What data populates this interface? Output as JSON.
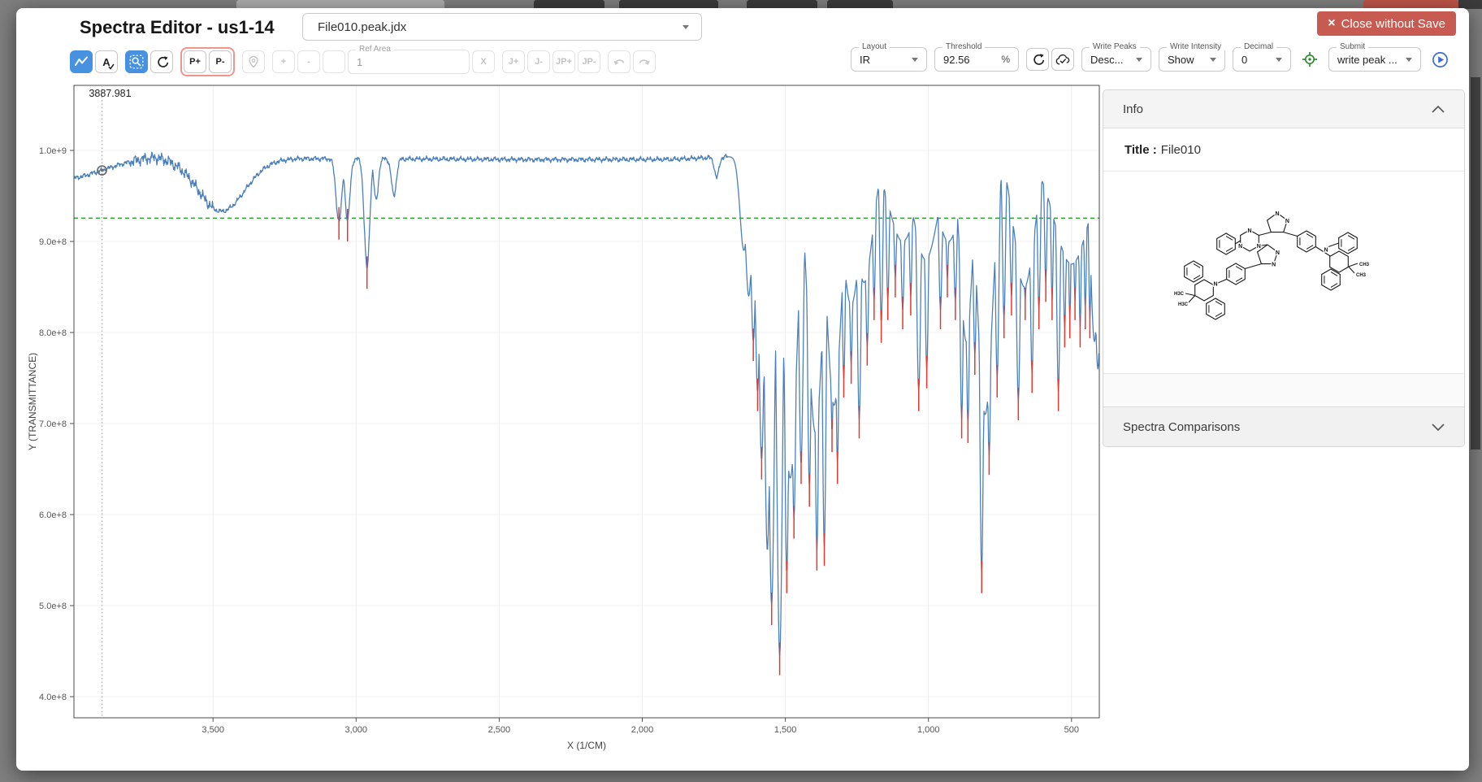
{
  "window": {
    "title": "Spectra Editor - us1-14",
    "file_selector_value": "File010.peak.jdx",
    "close_button_label": "Close without Save",
    "close_icon": "×"
  },
  "toolbar": {
    "buttons": {
      "a": "A",
      "a_check": "✓",
      "p_plus": "P+",
      "p_minus": "P-",
      "plus": "+",
      "minus": "-",
      "x": "X",
      "j_plus": "J+",
      "j_minus": "J-",
      "jp_plus": "JP+",
      "jp_minus": "JP-"
    },
    "ref_area": {
      "label": "Ref Area",
      "value": "1"
    }
  },
  "controls": {
    "layout": {
      "label": "Layout",
      "value": "IR"
    },
    "threshold": {
      "label": "Threshold",
      "value": "92.56",
      "suffix": "%"
    },
    "write_peaks": {
      "label": "Write Peaks",
      "value": "Desc..."
    },
    "write_intensity": {
      "label": "Write Intensity",
      "value": "Show"
    },
    "decimal": {
      "label": "Decimal",
      "value": "0"
    },
    "submit": {
      "label": "Submit",
      "value": "write peak ..."
    }
  },
  "panel": {
    "info_header": "Info",
    "title_label": "Title :",
    "title_value": "File010",
    "comparisons_header": "Spectra Comparisons"
  },
  "molecule": {
    "n": "N",
    "ch3": "CH3",
    "h3c": "H3C"
  },
  "chart_data": {
    "type": "line",
    "xlabel": "X (1/CM)",
    "ylabel": "Y (TRANSMITTANCE)",
    "x_range": [
      3986,
      403
    ],
    "x_ticks": [
      {
        "label": "3,500",
        "value": 3500
      },
      {
        "label": "3,000",
        "value": 3000
      },
      {
        "label": "2,500",
        "value": 2500
      },
      {
        "label": "2,000",
        "value": 2000
      },
      {
        "label": "1,500",
        "value": 1500
      },
      {
        "label": "1,000",
        "value": 1000
      },
      {
        "label": "500",
        "value": 500
      }
    ],
    "y_ticks": [
      {
        "label": "1.0e+9",
        "value": 10
      },
      {
        "label": "9.0e+8",
        "value": 9
      },
      {
        "label": "8.0e+8",
        "value": 8
      },
      {
        "label": "7.0e+8",
        "value": 7
      },
      {
        "label": "6.0e+8",
        "value": 6
      },
      {
        "label": "5.0e+8",
        "value": 5
      },
      {
        "label": "4.0e+8",
        "value": 4
      }
    ],
    "y_unit_scale": "1e8",
    "threshold_value": 9.256,
    "threshold_percent": 92.56,
    "cursor": {
      "x": 3887.981,
      "label": "3887.981",
      "y": 9.78
    },
    "series_color": "#4b80bc",
    "peak_marker_color": "#e03a30",
    "threshold_color": "#2f9e2f",
    "grid": true,
    "baseline_anchors": [
      [
        4020,
        9.67
      ],
      [
        3950,
        9.72
      ],
      [
        3890,
        9.78
      ],
      [
        3820,
        9.85
      ],
      [
        3760,
        9.9
      ],
      [
        3700,
        9.93
      ],
      [
        3620,
        9.91
      ],
      [
        3500,
        9.89
      ],
      [
        3200,
        9.91
      ],
      [
        2400,
        9.9
      ],
      [
        1900,
        9.9
      ],
      [
        1700,
        9.93
      ],
      [
        400,
        9.93
      ]
    ],
    "noise_amp": 0.012,
    "peaks": [
      [
        3470,
        9.33,
        95,
        0
      ],
      [
        3625,
        9.82,
        18,
        0
      ],
      [
        3060,
        9.22,
        12,
        1
      ],
      [
        3030,
        9.23,
        10,
        1
      ],
      [
        2962,
        8.7,
        11,
        1
      ],
      [
        2930,
        9.45,
        9,
        0
      ],
      [
        2868,
        9.5,
        10,
        0
      ],
      [
        1740,
        9.7,
        9,
        0
      ],
      [
        1645,
        8.9,
        16,
        0
      ],
      [
        1628,
        8.4,
        14,
        0
      ],
      [
        1612,
        7.9,
        10,
        1
      ],
      [
        1597,
        7.35,
        10,
        1
      ],
      [
        1583,
        6.6,
        11,
        1
      ],
      [
        1563,
        5.6,
        12,
        0
      ],
      [
        1548,
        5.0,
        12,
        1
      ],
      [
        1520,
        4.45,
        12,
        1
      ],
      [
        1495,
        5.35,
        9,
        1
      ],
      [
        1483,
        6.4,
        28,
        0
      ],
      [
        1470,
        5.95,
        9,
        1
      ],
      [
        1445,
        6.55,
        9,
        1
      ],
      [
        1416,
        6.3,
        8,
        1
      ],
      [
        1395,
        6.9,
        30,
        0
      ],
      [
        1390,
        5.6,
        8,
        1
      ],
      [
        1364,
        5.65,
        8,
        1
      ],
      [
        1337,
        6.9,
        7,
        1
      ],
      [
        1330,
        7.2,
        30,
        0
      ],
      [
        1318,
        6.55,
        7,
        1
      ],
      [
        1296,
        7.5,
        7,
        1
      ],
      [
        1270,
        7.65,
        7,
        1
      ],
      [
        1270,
        8.3,
        35,
        0
      ],
      [
        1242,
        7.05,
        8,
        1
      ],
      [
        1225,
        8.55,
        35,
        0
      ],
      [
        1214,
        7.85,
        7,
        1
      ],
      [
        1190,
        8.35,
        6,
        1
      ],
      [
        1165,
        8.1,
        6,
        1
      ],
      [
        1142,
        8.35,
        6,
        1
      ],
      [
        1116,
        8.6,
        6,
        1
      ],
      [
        1090,
        9.0,
        55,
        0
      ],
      [
        1090,
        8.25,
        7,
        1
      ],
      [
        1062,
        8.4,
        6,
        1
      ],
      [
        1034,
        7.35,
        8,
        1
      ],
      [
        1010,
        8.8,
        48,
        0
      ],
      [
        1006,
        7.6,
        7,
        1
      ],
      [
        958,
        8.25,
        7,
        1
      ],
      [
        934,
        8.6,
        6,
        1
      ],
      [
        930,
        9.0,
        48,
        0
      ],
      [
        906,
        8.35,
        7,
        1
      ],
      [
        884,
        7.05,
        7,
        1
      ],
      [
        868,
        7.9,
        24,
        0
      ],
      [
        862,
        7.0,
        7,
        1
      ],
      [
        838,
        7.75,
        7,
        1
      ],
      [
        814,
        5.35,
        8,
        1
      ],
      [
        802,
        7.1,
        30,
        0
      ],
      [
        788,
        6.65,
        8,
        1
      ],
      [
        760,
        7.5,
        7,
        1
      ],
      [
        736,
        8.15,
        6,
        1
      ],
      [
        710,
        8.4,
        6,
        1
      ],
      [
        686,
        7.25,
        8,
        1
      ],
      [
        665,
        8.5,
        40,
        0
      ],
      [
        662,
        8.35,
        6,
        1
      ],
      [
        638,
        7.55,
        7,
        1
      ],
      [
        614,
        8.25,
        6,
        1
      ],
      [
        590,
        8.55,
        5,
        1
      ],
      [
        568,
        8.35,
        5,
        1
      ],
      [
        546,
        7.35,
        7,
        1
      ],
      [
        524,
        8.05,
        6,
        1
      ],
      [
        506,
        8.15,
        5,
        1
      ],
      [
        500,
        8.75,
        70,
        0
      ],
      [
        488,
        8.35,
        5,
        1
      ],
      [
        470,
        8.05,
        5,
        1
      ],
      [
        452,
        8.25,
        5,
        1
      ],
      [
        436,
        8.15,
        5,
        1
      ],
      [
        420,
        7.9,
        15,
        0
      ],
      [
        408,
        7.6,
        12,
        0
      ]
    ]
  }
}
